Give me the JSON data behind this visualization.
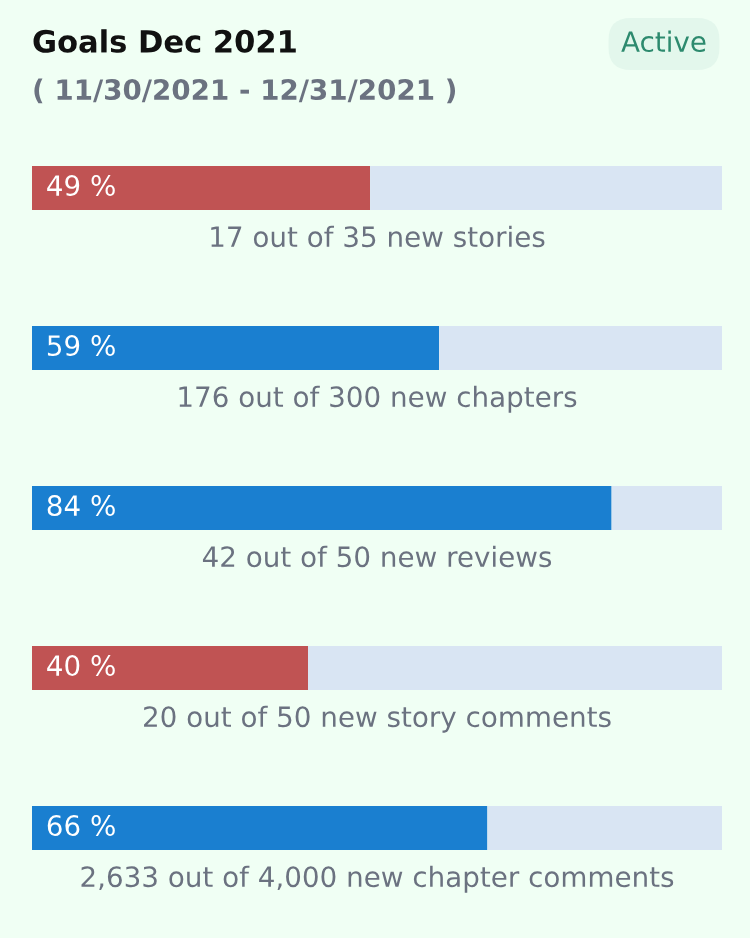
{
  "chart_data": {
    "type": "bar",
    "orientation": "horizontal",
    "stacked": true,
    "title": "Goals Dec 2021",
    "subtitle": "( 11/30/2021 - 12/31/2021 )",
    "annotations": [
      "Active"
    ],
    "categories": [
      "17 out of 35 new stories",
      "176 out of 300 new chapters",
      "42 out of 50 new reviews",
      "20 out of 50 new story comments",
      "2,633 out of 4,000 new chapter comments"
    ],
    "series": [
      {
        "colors": [
          "#c05353",
          "#1a7fd0",
          "#1a7fd0",
          "#c05353",
          "#1a7fd0"
        ],
        "values": [
          49,
          59,
          84,
          40,
          66
        ],
        "value_labels": [
          "49 %",
          "59 %",
          "84 %",
          "40 %",
          "66 %"
        ]
      },
      {
        "color": "#d9e5f3",
        "values": [
          51,
          41,
          16,
          60,
          34
        ]
      }
    ],
    "xlim": [
      0,
      100
    ]
  }
}
